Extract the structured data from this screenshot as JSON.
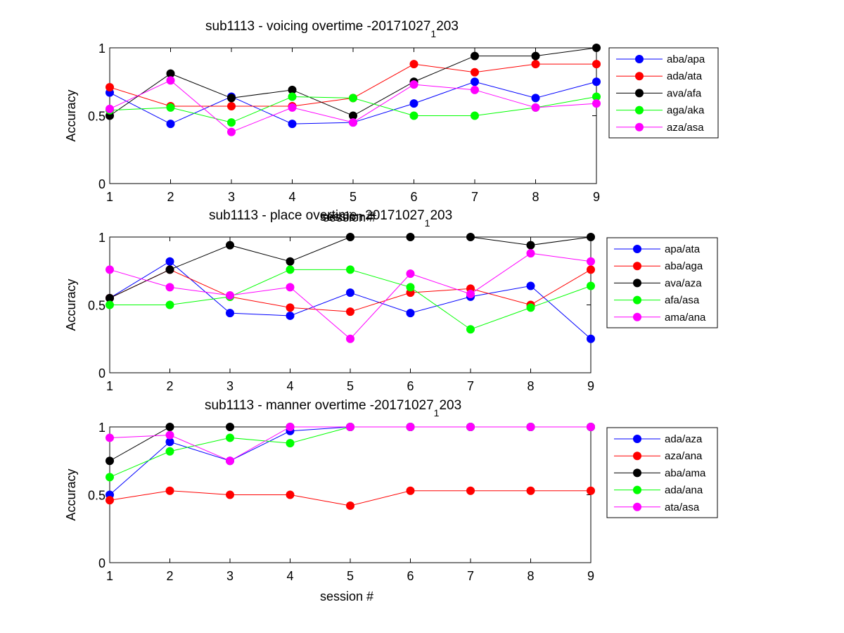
{
  "chart_data": [
    {
      "type": "line",
      "title": "sub1113 - voicing overtime -20171027",
      "title_subscript": "1",
      "title_suffix": "203",
      "xlabel": "session #",
      "ylabel": "Accuracy",
      "xlim": [
        1,
        9
      ],
      "ylim": [
        0,
        1
      ],
      "xticks": [
        "1",
        "2",
        "3",
        "4",
        "5",
        "6",
        "7",
        "8",
        "9"
      ],
      "yticks": [
        "0",
        "0.5",
        "1"
      ],
      "legend_position": "outside-right",
      "x": [
        1,
        2,
        3,
        4,
        5,
        6,
        7,
        8,
        9
      ],
      "series": [
        {
          "name": "aba/apa",
          "color": "#0000ff",
          "values": [
            0.67,
            0.44,
            0.64,
            0.44,
            0.45,
            0.59,
            0.75,
            0.63,
            0.75
          ]
        },
        {
          "name": "ada/ata",
          "color": "#ff0000",
          "values": [
            0.71,
            0.57,
            0.57,
            0.57,
            0.63,
            0.88,
            0.82,
            0.88,
            0.88
          ]
        },
        {
          "name": "ava/afa",
          "color": "#000000",
          "values": [
            0.5,
            0.81,
            0.63,
            0.69,
            0.5,
            0.75,
            0.94,
            0.94,
            1.0
          ]
        },
        {
          "name": "aga/aka",
          "color": "#00ff00",
          "values": [
            0.54,
            0.56,
            0.45,
            0.64,
            0.63,
            0.5,
            0.5,
            0.56,
            0.64
          ]
        },
        {
          "name": "aza/asa",
          "color": "#ff00ff",
          "values": [
            0.55,
            0.76,
            0.38,
            0.56,
            0.45,
            0.73,
            0.69,
            0.56,
            0.59
          ]
        }
      ]
    },
    {
      "type": "line",
      "title": "sub1113 - place overtime -20171027",
      "title_subscript": "1",
      "title_suffix": "203",
      "xlabel": "session #",
      "ylabel": "Accuracy",
      "xlim": [
        1,
        9
      ],
      "ylim": [
        0,
        1
      ],
      "xticks": [
        "1",
        "2",
        "3",
        "4",
        "5",
        "6",
        "7",
        "8",
        "9"
      ],
      "yticks": [
        "0",
        "0.5",
        "1"
      ],
      "legend_position": "outside-right",
      "x": [
        1,
        2,
        3,
        4,
        5,
        6,
        7,
        8,
        9
      ],
      "series": [
        {
          "name": "apa/ata",
          "color": "#0000ff",
          "values": [
            0.55,
            0.82,
            0.44,
            0.42,
            0.59,
            0.44,
            0.56,
            0.64,
            0.25
          ]
        },
        {
          "name": "aba/aga",
          "color": "#ff0000",
          "values": [
            0.55,
            0.76,
            0.56,
            0.48,
            0.45,
            0.59,
            0.62,
            0.5,
            0.76
          ]
        },
        {
          "name": "ava/aza",
          "color": "#000000",
          "values": [
            0.55,
            0.76,
            0.94,
            0.82,
            1.0,
            1.0,
            1.0,
            0.94,
            1.0
          ]
        },
        {
          "name": "afa/asa",
          "color": "#00ff00",
          "values": [
            0.5,
            0.5,
            0.56,
            0.76,
            0.76,
            0.63,
            0.32,
            0.48,
            0.64
          ]
        },
        {
          "name": "ama/ana",
          "color": "#ff00ff",
          "values": [
            0.76,
            0.63,
            0.57,
            0.63,
            0.25,
            0.73,
            0.58,
            0.88,
            0.82
          ]
        }
      ]
    },
    {
      "type": "line",
      "title": "sub1113 - manner overtime -20171027",
      "title_subscript": "1",
      "title_suffix": "203",
      "xlabel": "session #",
      "ylabel": "Accuracy",
      "xlim": [
        1,
        9
      ],
      "ylim": [
        0,
        1
      ],
      "xticks": [
        "1",
        "2",
        "3",
        "4",
        "5",
        "6",
        "7",
        "8",
        "9"
      ],
      "yticks": [
        "0",
        "0.5",
        "1"
      ],
      "legend_position": "outside-right",
      "x": [
        1,
        2,
        3,
        4,
        5,
        6,
        7,
        8,
        9
      ],
      "series": [
        {
          "name": "ada/aza",
          "color": "#0000ff",
          "values": [
            0.5,
            0.89,
            0.75,
            0.97,
            1.0,
            1.0,
            1.0,
            1.0,
            1.0
          ]
        },
        {
          "name": "aza/ana",
          "color": "#ff0000",
          "values": [
            0.46,
            0.53,
            0.5,
            0.5,
            0.42,
            0.53,
            0.53,
            0.53,
            0.53
          ]
        },
        {
          "name": "aba/ama",
          "color": "#000000",
          "values": [
            0.75,
            1.0,
            1.0,
            1.0,
            1.0,
            1.0,
            1.0,
            1.0,
            1.0
          ]
        },
        {
          "name": "ada/ana",
          "color": "#00ff00",
          "values": [
            0.63,
            0.82,
            0.92,
            0.88,
            1.0,
            1.0,
            1.0,
            1.0,
            1.0
          ]
        },
        {
          "name": "ata/asa",
          "color": "#ff00ff",
          "values": [
            0.92,
            0.94,
            0.75,
            1.0,
            1.0,
            1.0,
            1.0,
            1.0,
            1.0
          ]
        }
      ]
    }
  ]
}
